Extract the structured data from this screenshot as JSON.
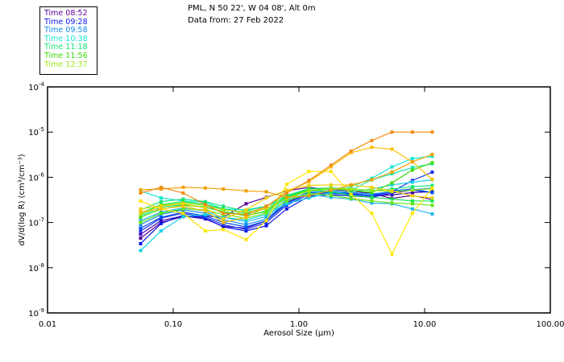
{
  "header": {
    "line1": "PML, N 50 22', W 04 08', Alt 0m",
    "line2": "Data from: 27 Feb 2022"
  },
  "legend": [
    {
      "label": "Time 08:52",
      "color": "#5a0096"
    },
    {
      "label": "Time 09:28",
      "color": "#0a14e6"
    },
    {
      "label": "Time 09:58",
      "color": "#148cf0"
    },
    {
      "label": "Time 10:38",
      "color": "#14e6d2"
    },
    {
      "label": "Time 11:18",
      "color": "#14e678"
    },
    {
      "label": "Time 11:56",
      "color": "#3cdc0a"
    },
    {
      "label": "Time 12:37",
      "color": "#a0e614"
    }
  ],
  "chart_data": {
    "type": "line",
    "title": "PML, N 50 22', W 04 08', Alt 0m",
    "subtitle": "Data from: 27 Feb 2022",
    "xlabel": "Aerosol Size (μm)",
    "ylabel": "dV/d(log R)  (cm³/cm⁻³)",
    "xscale": "log",
    "yscale": "log",
    "xlim": [
      0.01,
      100
    ],
    "ylim": [
      1e-09,
      0.0001
    ],
    "xticks": [
      0.01,
      0.1,
      1,
      10,
      100
    ],
    "xtick_labels": [
      "0.01",
      "0.10",
      "1.00",
      "10.00",
      "100.00"
    ],
    "yticks": [
      1e-09,
      1e-08,
      1e-07,
      1e-06,
      1e-05,
      0.0001
    ],
    "ytick_labels": [
      {
        "base": "10",
        "exp": "-9"
      },
      {
        "base": "10",
        "exp": "-8"
      },
      {
        "base": "10",
        "exp": "-7"
      },
      {
        "base": "10",
        "exp": "-6"
      },
      {
        "base": "10",
        "exp": "-5"
      },
      {
        "base": "10",
        "exp": "-4"
      }
    ],
    "grid": false,
    "legend_position": "top-left outside",
    "x": [
      0.055,
      0.08,
      0.12,
      0.18,
      0.25,
      0.38,
      0.55,
      0.8,
      1.2,
      1.8,
      2.6,
      3.8,
      5.5,
      8.0,
      11.5
    ],
    "series": [
      {
        "name": "s1",
        "color": "#5a0096",
        "values": [
          4.5e-08,
          1e-07,
          1.35e-07,
          1.4e-07,
          1.3e-07,
          2.6e-07,
          3.6e-07,
          5e-07,
          6e-07,
          5.2e-07,
          5e-07,
          4.4e-07,
          3.4e-07,
          4e-07,
          3.2e-07
        ]
      },
      {
        "name": "s2",
        "color": "#3c00b4",
        "values": [
          5.5e-08,
          1.1e-07,
          1.4e-07,
          1.2e-07,
          8.2e-08,
          7.5e-08,
          1.1e-07,
          2.8e-07,
          4.5e-07,
          4.6e-07,
          4.4e-07,
          3.9e-07,
          4.1e-07,
          4.6e-07,
          4.8e-07
        ]
      },
      {
        "name": "s3",
        "color": "#0a14e6",
        "values": [
          3.4e-08,
          9.5e-08,
          1.45e-07,
          1.25e-07,
          8e-08,
          6.5e-08,
          8.5e-08,
          2e-07,
          3.8e-07,
          4.1e-07,
          3.9e-07,
          3.6e-07,
          4.5e-07,
          5.2e-07,
          4.6e-07
        ]
      },
      {
        "name": "s4",
        "color": "#1e32f0",
        "values": [
          6.5e-08,
          1.25e-07,
          1.6e-07,
          1.3e-07,
          9e-08,
          7e-08,
          1e-07,
          2.4e-07,
          4.2e-07,
          4.4e-07,
          4.2e-07,
          3.8e-07,
          4.8e-07,
          8.5e-07,
          1.3e-06
        ]
      },
      {
        "name": "s5",
        "color": "#0050f0",
        "values": [
          7.5e-08,
          1.3e-07,
          1.7e-07,
          1.4e-07,
          1e-07,
          8e-08,
          1.1e-07,
          2.6e-07,
          4.5e-07,
          4.6e-07,
          4.3e-07,
          4e-07,
          5e-07,
          5.5e-07,
          4.6e-07
        ]
      },
      {
        "name": "s6",
        "color": "#148cf0",
        "values": [
          9e-08,
          1.5e-07,
          1.9e-07,
          1.6e-07,
          1.15e-07,
          9e-08,
          1.2e-07,
          2.9e-07,
          4.8e-07,
          4.9e-07,
          4.6e-07,
          4.3e-07,
          4.8e-07,
          5.3e-07,
          5.8e-07
        ]
      },
      {
        "name": "s7",
        "color": "#1eb4f0",
        "values": [
          1.1e-07,
          1.7e-07,
          2.1e-07,
          1.8e-07,
          1.3e-07,
          1.05e-07,
          1.35e-07,
          3.2e-07,
          4.2e-07,
          3.6e-07,
          3.3e-07,
          2.7e-07,
          2.6e-07,
          2e-07,
          1.55e-07
        ]
      },
      {
        "name": "s8",
        "color": "#14d2e6",
        "values": [
          2.4e-08,
          6.5e-08,
          1.35e-07,
          1.5e-07,
          1.3e-07,
          1.15e-07,
          1.5e-07,
          2.6e-07,
          3.5e-07,
          4.6e-07,
          4.8e-07,
          5.5e-07,
          6.8e-07,
          7.8e-07,
          8.8e-07
        ]
      },
      {
        "name": "s9",
        "color": "#14e6d2",
        "values": [
          5e-07,
          3.5e-07,
          3e-07,
          2.8e-07,
          2e-07,
          1.9e-07,
          2.3e-07,
          3.5e-07,
          4.2e-07,
          5e-07,
          6.2e-07,
          9.5e-07,
          1.7e-06,
          2.6e-06,
          2.9e-06
        ]
      },
      {
        "name": "s10",
        "color": "#14e6aa",
        "values": [
          1.4e-07,
          2.2e-07,
          2.5e-07,
          2.2e-07,
          1.7e-07,
          1.5e-07,
          1.7e-07,
          3.4e-07,
          5e-07,
          5.4e-07,
          5.2e-07,
          8.8e-07,
          1.2e-06,
          1.65e-06,
          2e-06
        ]
      },
      {
        "name": "s11",
        "color": "#14e678",
        "values": [
          1.9e-07,
          2.9e-07,
          3.3e-07,
          2.9e-07,
          2.3e-07,
          1.8e-07,
          2.3e-07,
          4e-07,
          5.6e-07,
          5.8e-07,
          5.6e-07,
          5e-07,
          5.5e-07,
          6.2e-07,
          6.6e-07
        ]
      },
      {
        "name": "s12",
        "color": "#14e650",
        "values": [
          1.6e-07,
          2.5e-07,
          2.9e-07,
          2.5e-07,
          2e-07,
          1.6e-07,
          2e-07,
          3.8e-07,
          5.3e-07,
          4.8e-07,
          4e-07,
          3.6e-07,
          3.3e-07,
          3e-07,
          3e-07
        ]
      },
      {
        "name": "s13",
        "color": "#3cdc0a",
        "values": [
          1.3e-07,
          2e-07,
          2.4e-07,
          2.2e-07,
          1.75e-07,
          1.4e-07,
          1.8e-07,
          3.6e-07,
          5.2e-07,
          5.6e-07,
          5.2e-07,
          4.6e-07,
          7.5e-07,
          1.45e-06,
          2.1e-06
        ]
      },
      {
        "name": "s14",
        "color": "#64e614",
        "values": [
          1e-07,
          1.6e-07,
          2e-07,
          1.9e-07,
          1.5e-07,
          1.25e-07,
          1.6e-07,
          3e-07,
          4.4e-07,
          4e-07,
          3.4e-07,
          3e-07,
          2.7e-07,
          2.6e-07,
          2.4e-07
        ]
      },
      {
        "name": "s15",
        "color": "#a0e614",
        "values": [
          1.5e-07,
          2.4e-07,
          2.7e-07,
          2.4e-07,
          1.9e-07,
          1.7e-07,
          2e-07,
          3.4e-07,
          5e-07,
          5.6e-07,
          5.5e-07,
          5.2e-07,
          4.8e-07,
          5.2e-07,
          5.6e-07
        ]
      },
      {
        "name": "s16",
        "color": "#ffe600",
        "values": [
          3e-07,
          2e-07,
          1.6e-07,
          6.5e-08,
          7e-08,
          4.2e-08,
          1.1e-07,
          7e-07,
          1.35e-06,
          1.35e-06,
          4.2e-07,
          1.6e-07,
          2e-08,
          1.6e-07,
          5.8e-07
        ]
      },
      {
        "name": "s17",
        "color": "#f0d200",
        "values": [
          2e-07,
          2.3e-07,
          2.6e-07,
          2.1e-07,
          1.2e-07,
          1.9e-07,
          3.5e-07,
          5.2e-07,
          6.6e-07,
          6.8e-07,
          6.8e-07,
          6e-07,
          5e-07,
          3.9e-07,
          3.5e-07
        ]
      },
      {
        "name": "s18",
        "color": "#ffbe00",
        "values": [
          1.7e-07,
          2e-07,
          2.3e-07,
          1.8e-07,
          1e-07,
          1.3e-07,
          2.2e-07,
          4.8e-07,
          8e-07,
          1.7e-06,
          3.5e-06,
          4.6e-06,
          4.2e-06,
          2.2e-06,
          9e-07
        ]
      },
      {
        "name": "s19",
        "color": "#f0a000",
        "values": [
          5.3e-07,
          5.5e-07,
          6e-07,
          5.8e-07,
          5.5e-07,
          5e-07,
          4.8e-07,
          3.6e-07,
          3.9e-07,
          5.2e-07,
          6.8e-07,
          8.8e-07,
          1.3e-06,
          2.2e-06,
          3.2e-06
        ]
      },
      {
        "name": "s20",
        "color": "#f08c14",
        "values": [
          4.5e-07,
          6e-07,
          4.5e-07,
          2.5e-07,
          1.6e-07,
          1.5e-07,
          2.3e-07,
          4.5e-07,
          8.5e-07,
          1.85e-06,
          3.8e-06,
          6.5e-06,
          1e-05,
          1e-05,
          1e-05
        ]
      }
    ]
  }
}
